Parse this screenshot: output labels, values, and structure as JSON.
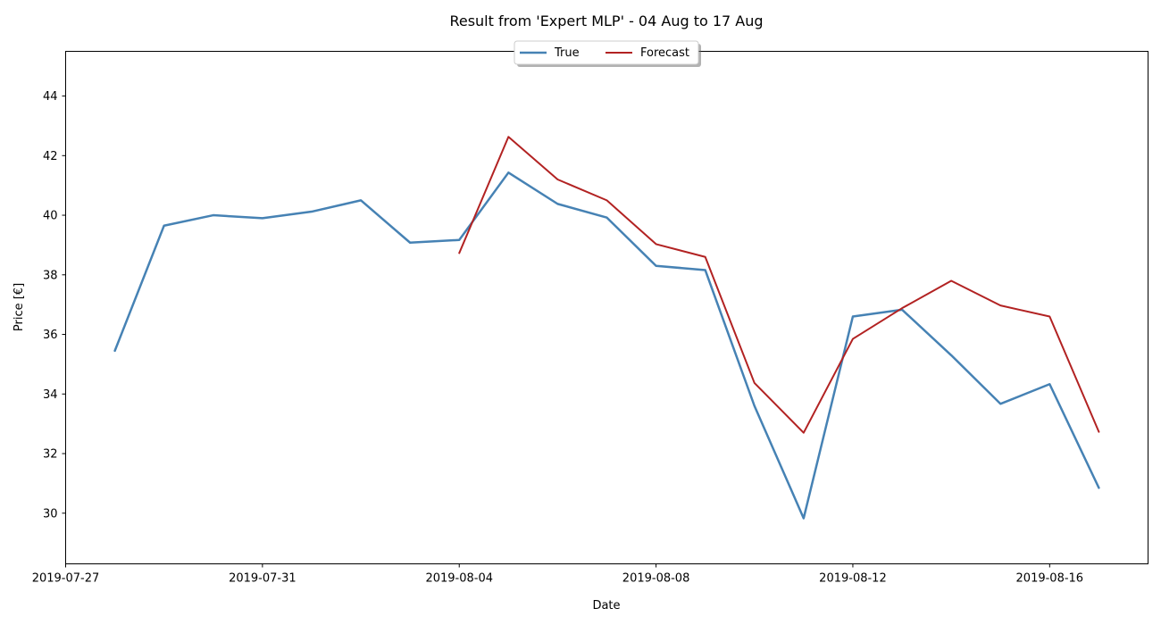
{
  "chart_data": {
    "type": "line",
    "title": "Result from 'Expert MLP' - 04 Aug to 17 Aug",
    "xlabel": "Date",
    "ylabel": "Price [€]",
    "xlim": [
      "2019-07-27",
      "2019-08-18"
    ],
    "ylim": [
      28.3,
      45.5
    ],
    "x_ticks": [
      "2019-07-27",
      "2019-07-31",
      "2019-08-04",
      "2019-08-08",
      "2019-08-12",
      "2019-08-16"
    ],
    "y_ticks": [
      30,
      32,
      34,
      36,
      38,
      40,
      42,
      44
    ],
    "grid": false,
    "legend": {
      "placement": "upper center",
      "columns": 2
    },
    "series": [
      {
        "name": "True",
        "color": "#4682b4",
        "points": [
          {
            "x": "2019-07-28",
            "y": 35.45
          },
          {
            "x": "2019-07-29",
            "y": 39.65
          },
          {
            "x": "2019-07-30",
            "y": 40.0
          },
          {
            "x": "2019-07-31",
            "y": 39.9
          },
          {
            "x": "2019-08-01",
            "y": 40.12
          },
          {
            "x": "2019-08-02",
            "y": 40.5
          },
          {
            "x": "2019-08-03",
            "y": 39.08
          },
          {
            "x": "2019-08-04",
            "y": 39.17
          },
          {
            "x": "2019-08-05",
            "y": 41.43
          },
          {
            "x": "2019-08-06",
            "y": 40.38
          },
          {
            "x": "2019-08-07",
            "y": 39.92
          },
          {
            "x": "2019-08-08",
            "y": 38.3
          },
          {
            "x": "2019-08-09",
            "y": 38.16
          },
          {
            "x": "2019-08-10",
            "y": 33.6
          },
          {
            "x": "2019-08-11",
            "y": 29.83
          },
          {
            "x": "2019-08-12",
            "y": 36.6
          },
          {
            "x": "2019-08-13",
            "y": 36.83
          },
          {
            "x": "2019-08-14",
            "y": 35.3
          },
          {
            "x": "2019-08-15",
            "y": 33.67
          },
          {
            "x": "2019-08-16",
            "y": 34.33
          },
          {
            "x": "2019-08-17",
            "y": 30.85
          }
        ]
      },
      {
        "name": "Forecast",
        "color": "#b22222",
        "points": [
          {
            "x": "2019-08-04",
            "y": 38.73
          },
          {
            "x": "2019-08-05",
            "y": 42.63
          },
          {
            "x": "2019-08-06",
            "y": 41.2
          },
          {
            "x": "2019-08-07",
            "y": 40.5
          },
          {
            "x": "2019-08-08",
            "y": 39.03
          },
          {
            "x": "2019-08-09",
            "y": 38.6
          },
          {
            "x": "2019-08-10",
            "y": 34.37
          },
          {
            "x": "2019-08-11",
            "y": 32.7
          },
          {
            "x": "2019-08-12",
            "y": 35.85
          },
          {
            "x": "2019-08-13",
            "y": 36.88
          },
          {
            "x": "2019-08-14",
            "y": 37.8
          },
          {
            "x": "2019-08-15",
            "y": 36.97
          },
          {
            "x": "2019-08-16",
            "y": 36.6
          },
          {
            "x": "2019-08-17",
            "y": 32.73
          }
        ]
      }
    ]
  }
}
